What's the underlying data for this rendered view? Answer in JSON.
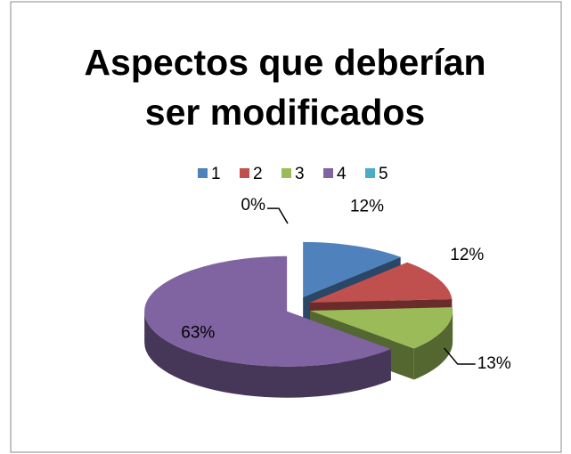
{
  "chart_data": {
    "type": "pie",
    "title": "Aspectos que deberían ser modificados",
    "categories": [
      "1",
      "2",
      "3",
      "4",
      "5"
    ],
    "values": [
      12,
      12,
      13,
      63,
      0
    ],
    "value_labels": [
      "12%",
      "12%",
      "13%",
      "63%",
      "0%"
    ],
    "colors": [
      "#4f81bd",
      "#c0504d",
      "#9bbb59",
      "#8064a2",
      "#4bacc6"
    ],
    "legend": "top",
    "exploded": true,
    "three_d": true
  }
}
